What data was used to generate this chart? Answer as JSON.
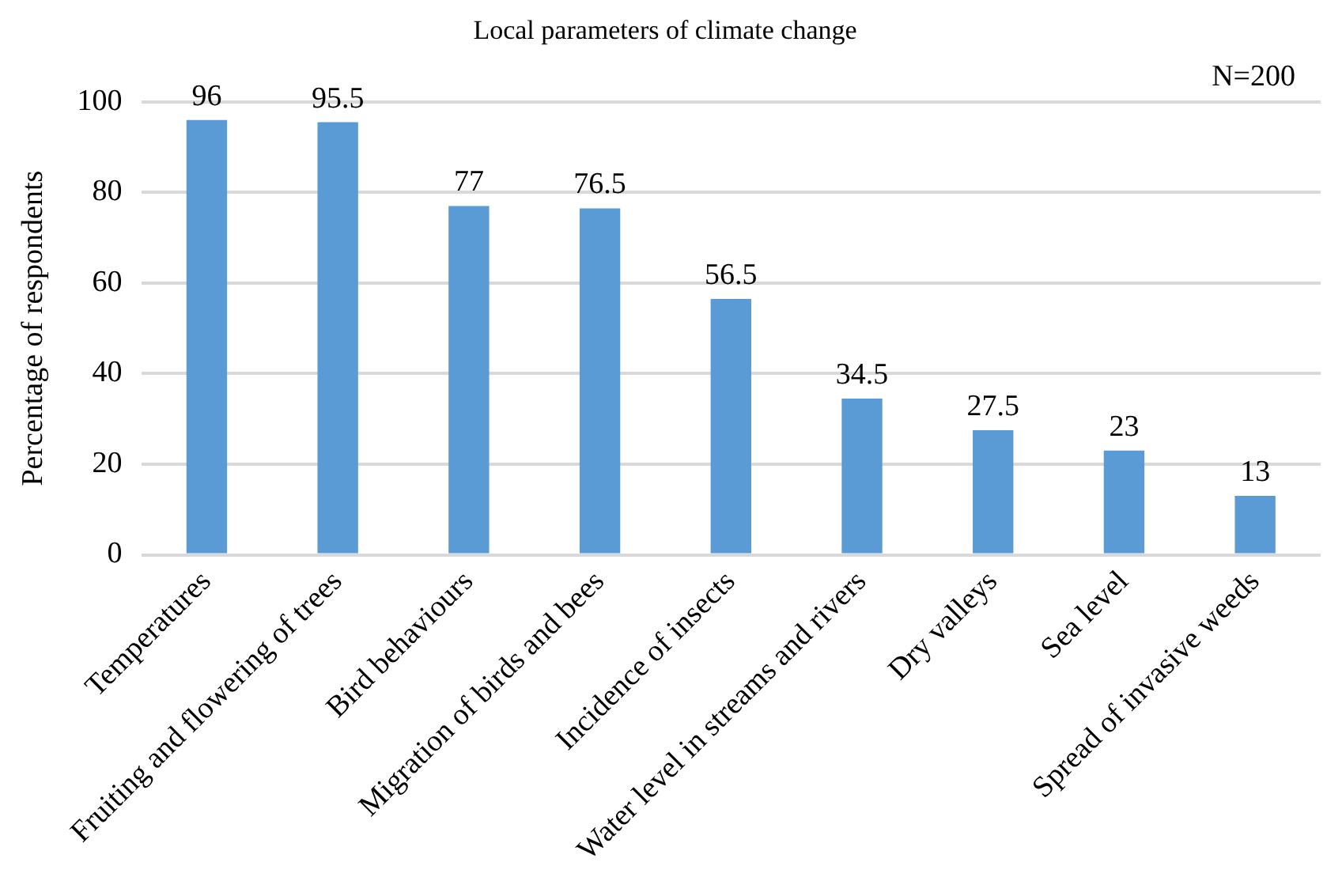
{
  "chart_data": {
    "type": "bar",
    "title": "Local parameters of climate change",
    "ylabel": "Percentage of respondents",
    "categories": [
      "Temperatures",
      "Fruiting and flowering of trees",
      "Bird behaviours",
      "Migration of birds and bees",
      "Incidence of insects",
      "Water level in streams and rivers",
      "Dry valleys",
      "Sea level",
      "Spread of invasive weeds"
    ],
    "values": [
      96,
      95.5,
      77,
      76.5,
      56.5,
      34.5,
      27.5,
      23,
      13
    ],
    "color": "#5b9bd5",
    "ylim": [
      0,
      100
    ],
    "yticks": [
      0,
      20,
      40,
      60,
      80,
      100
    ],
    "grid": "y",
    "data_labels": true,
    "annotations": [
      "N=200"
    ]
  }
}
